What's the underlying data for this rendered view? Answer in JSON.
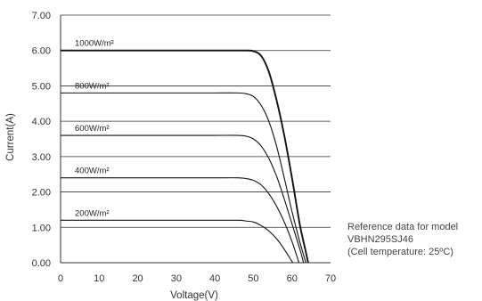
{
  "chart_data": {
    "type": "line",
    "xlabel": "Voltage(V)",
    "ylabel": "Current(A)",
    "xlim": [
      0,
      70
    ],
    "ylim": [
      0,
      7
    ],
    "x_ticks": [
      "0",
      "10",
      "20",
      "30",
      "40",
      "50",
      "60",
      "70"
    ],
    "y_ticks": [
      "0.00",
      "1.00",
      "2.00",
      "3.00",
      "4.00",
      "5.00",
      "6.00",
      "7.00"
    ],
    "grid": "horizontal",
    "series": [
      {
        "name": "1000W/m²",
        "x": [
          0,
          10,
          20,
          30,
          40,
          48,
          50,
          52,
          54,
          56,
          58,
          60,
          62,
          63.5,
          64.2
        ],
        "y": [
          6.0,
          6.0,
          6.0,
          6.0,
          6.0,
          6.0,
          5.98,
          5.85,
          5.4,
          4.6,
          3.6,
          2.4,
          1.1,
          0.35,
          0.0
        ]
      },
      {
        "name": "800W/m²",
        "x": [
          0,
          10,
          20,
          30,
          40,
          46,
          48,
          50,
          52,
          54,
          56,
          58,
          60,
          62,
          63.6
        ],
        "y": [
          4.8,
          4.8,
          4.8,
          4.8,
          4.8,
          4.8,
          4.78,
          4.7,
          4.45,
          4.0,
          3.3,
          2.4,
          1.45,
          0.6,
          0.0
        ]
      },
      {
        "name": "600W/m²",
        "x": [
          0,
          10,
          20,
          30,
          40,
          46,
          48,
          50,
          52,
          54,
          56,
          58,
          60,
          62,
          63.0
        ],
        "y": [
          3.6,
          3.6,
          3.6,
          3.6,
          3.6,
          3.6,
          3.58,
          3.5,
          3.3,
          2.95,
          2.45,
          1.8,
          1.1,
          0.4,
          0.0
        ]
      },
      {
        "name": "400W/m²",
        "x": [
          0,
          10,
          20,
          30,
          40,
          46,
          48,
          50,
          52,
          54,
          56,
          58,
          60,
          61.8
        ],
        "y": [
          2.4,
          2.4,
          2.4,
          2.4,
          2.4,
          2.4,
          2.38,
          2.33,
          2.2,
          1.95,
          1.6,
          1.15,
          0.6,
          0.0
        ]
      },
      {
        "name": "200W/m²",
        "x": [
          0,
          10,
          20,
          30,
          40,
          46,
          48,
          50,
          52,
          54,
          56,
          58,
          60.2
        ],
        "y": [
          1.2,
          1.2,
          1.2,
          1.2,
          1.2,
          1.2,
          1.18,
          1.15,
          1.05,
          0.9,
          0.68,
          0.38,
          0.0
        ]
      }
    ],
    "annotation": {
      "line1": "Reference data for model",
      "line2": "VBHN295SJ46",
      "line3": "(Cell temperature: 25ºC)"
    }
  },
  "colors": {
    "axis": "#333333",
    "grid": "#333333",
    "curve": "#111111"
  }
}
